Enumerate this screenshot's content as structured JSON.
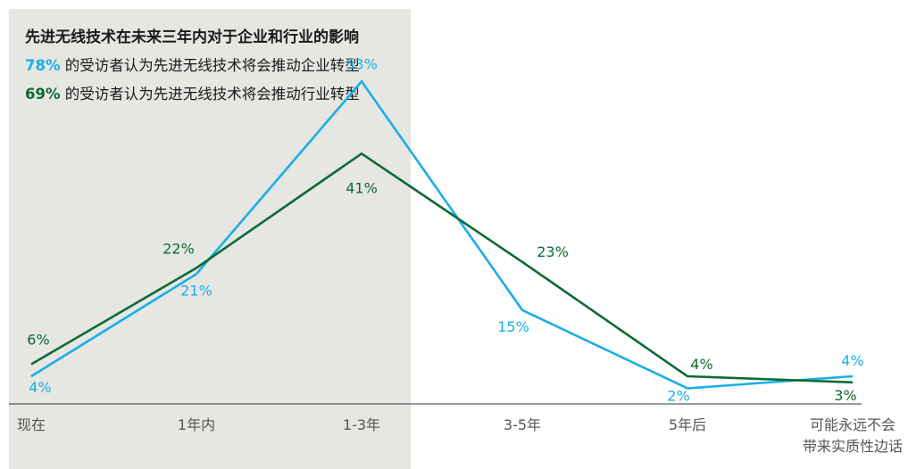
{
  "panel": {
    "title": "先进无线技术在未来三年内对于企业和行业的影响",
    "stat1_pct": "78%",
    "stat1_text": " 的受访者认为先进无线技术将会推动企业转型",
    "stat2_pct": "69%",
    "stat2_text": " 的受访者认为先进无线技术将会推动行业转型"
  },
  "colors": {
    "blue": "#1aaee8",
    "green": "#0c6b34",
    "shade": "#e6e6e3",
    "axis": "#333333"
  },
  "chart_data": {
    "type": "line",
    "categories": [
      "现在",
      "1年内",
      "1-3年",
      "3-5年",
      "5年后",
      "可能永远不会带来实质性边话"
    ],
    "category_lines": [
      [
        "现在"
      ],
      [
        "1年内"
      ],
      [
        "1-3年"
      ],
      [
        "3-5年"
      ],
      [
        "5年后"
      ],
      [
        "可能永远不会",
        "带来实质性边话"
      ]
    ],
    "series": [
      {
        "color": "#1aaee8",
        "values": [
          4,
          21,
          53,
          15,
          2,
          4
        ],
        "labels": [
          "4%",
          "21%",
          "53%",
          "15%",
          "2%",
          "4%"
        ]
      },
      {
        "color": "#0c6b34",
        "values": [
          6,
          22,
          41,
          23,
          4,
          3
        ],
        "labels": [
          "6%",
          "22%",
          "41%",
          "23%",
          "4%",
          "3%"
        ]
      }
    ],
    "ylim": [
      0,
      60
    ],
    "grid": false,
    "legend": "none"
  }
}
